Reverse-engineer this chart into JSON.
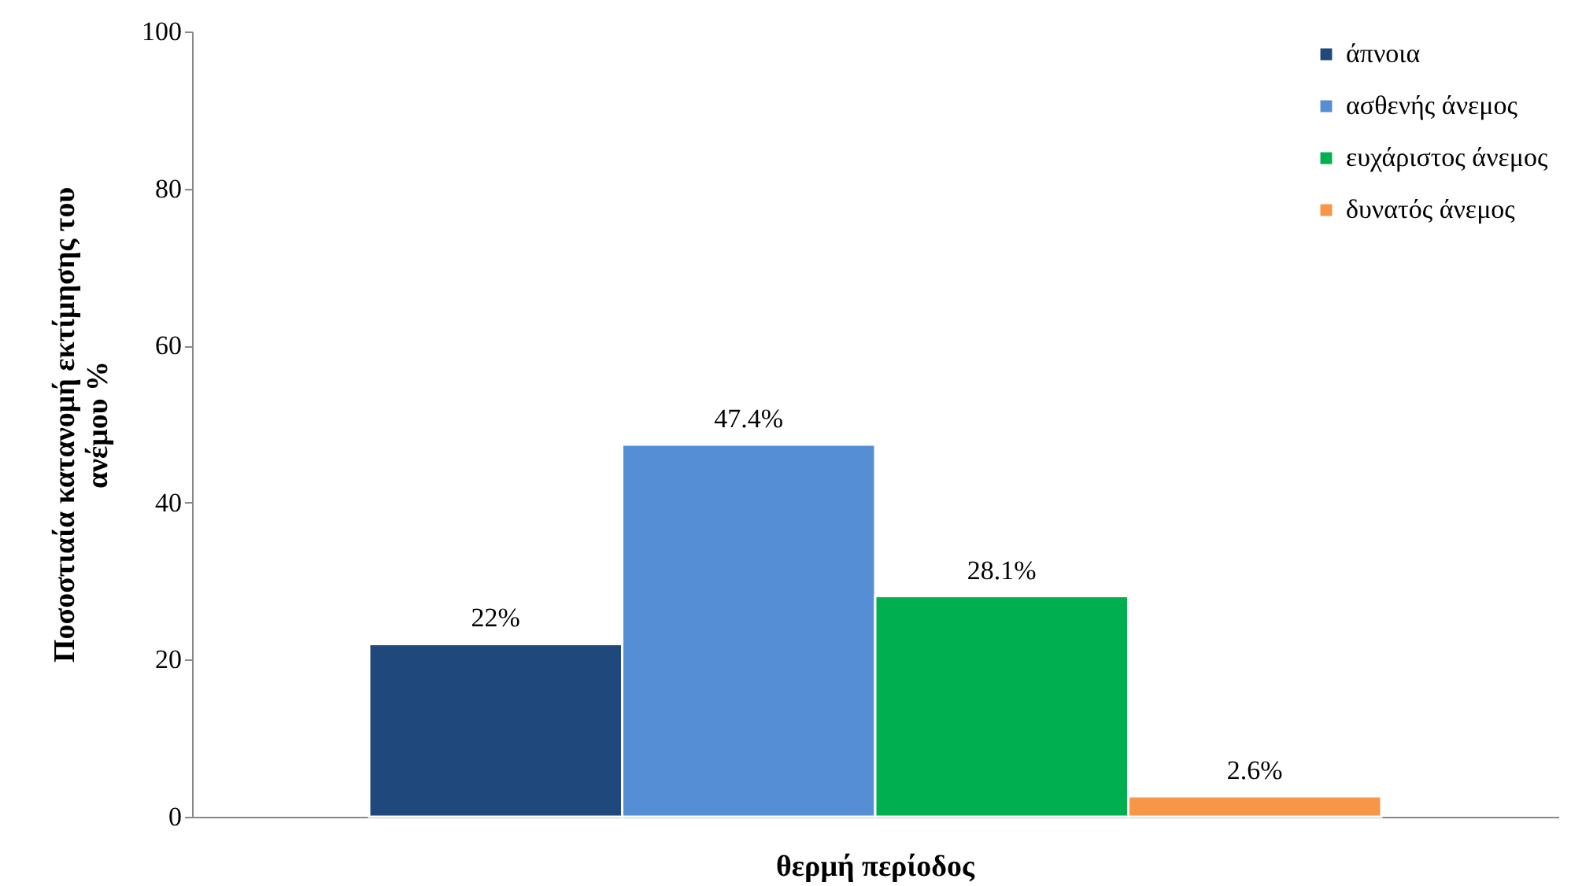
{
  "chart_data": {
    "type": "bar",
    "categories": [
      "θερμή περίοδος"
    ],
    "ylabel": "Ποσοστιαία κατανομή εκτίμησης του ανέμου %",
    "series": [
      {
        "name": "άπνοια",
        "color": "#1f497d",
        "values": [
          22
        ],
        "value_labels": [
          "22%"
        ]
      },
      {
        "name": "ασθενής άνεμος",
        "color": "#558ed5",
        "values": [
          47.4
        ],
        "value_labels": [
          "47.4%"
        ]
      },
      {
        "name": "ευχάριστος άνεμος",
        "color": "#00b050",
        "values": [
          28.1
        ],
        "value_labels": [
          "28.1%"
        ]
      },
      {
        "name": "δυνατός άνεμος",
        "color": "#f79646",
        "values": [
          2.6
        ],
        "value_labels": [
          "2.6%"
        ]
      }
    ],
    "ylim": [
      0,
      100
    ],
    "yticks": [
      0,
      20,
      40,
      60,
      80,
      100
    ],
    "grid": false,
    "legend": "top right"
  }
}
